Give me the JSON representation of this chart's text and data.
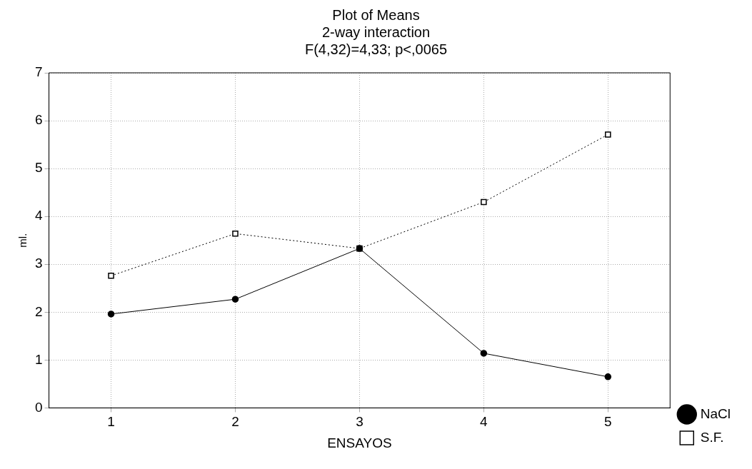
{
  "chart_data": {
    "type": "line",
    "title": "Plot of Means",
    "subtitle": "2-way interaction\nF(4,32)=4,33; p<,0065",
    "xlabel": "ENSAYOS",
    "ylabel": "ml.",
    "categories": [
      "1",
      "2",
      "3",
      "4",
      "5"
    ],
    "series": [
      {
        "name": "NaCl",
        "color": "#000000",
        "values": [
          1.96,
          2.27,
          3.33,
          1.14,
          0.65
        ],
        "marker": "circle",
        "line_style": "solid"
      },
      {
        "name": "S.F.",
        "color": "#000000",
        "values": [
          2.76,
          3.64,
          3.33,
          4.3,
          5.71
        ],
        "marker": "square",
        "line_style": "dotted"
      }
    ],
    "ylim": [
      0,
      7
    ],
    "yticks": [
      0,
      1,
      2,
      3,
      4,
      5,
      6,
      7
    ],
    "grid": true,
    "legend": "right"
  }
}
